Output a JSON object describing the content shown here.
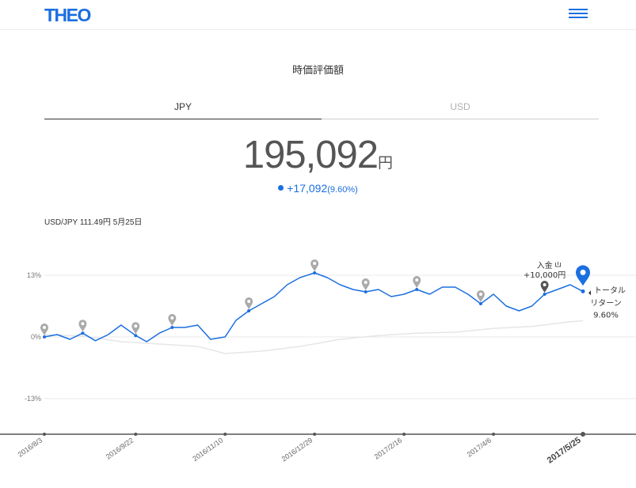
{
  "header": {
    "logo": "THEO",
    "menu_icon": "hamburger-icon"
  },
  "title": "時価評価額",
  "tabs": [
    {
      "label": "JPY",
      "active": true
    },
    {
      "label": "USD",
      "active": false
    }
  ],
  "valuation": {
    "amount": "195,092",
    "unit": "円",
    "gain": "+17,092",
    "gain_pct": "(9.60%)"
  },
  "fx_rate": "USD/JPY 111.49円 5月25日",
  "colors": {
    "accent": "#1b6fe0",
    "benchmark": "#e6e6e6",
    "marker": "#aaaaaa"
  },
  "chart_data": {
    "type": "line",
    "y_ticks": [
      "13%",
      "0%",
      "-13%"
    ],
    "x_ticks": [
      "2016/8/3",
      "2016/9/22",
      "2016/11/10",
      "2016/12/29",
      "2017/2/16",
      "2017/4/6",
      "2017/5/25"
    ],
    "x_ticks_emphasized": "2017/5/25",
    "xlim": [
      "2016/8/3",
      "2017/5/25"
    ],
    "ylim": [
      -0.2,
      0.18
    ],
    "series": [
      {
        "role": "portfolio",
        "x": [
          "2016/8/3",
          "2016/8/10",
          "2016/8/17",
          "2016/8/24",
          "2016/8/31",
          "2016/9/7",
          "2016/9/14",
          "2016/9/22",
          "2016/9/28",
          "2016/10/5",
          "2016/10/12",
          "2016/10/19",
          "2016/10/26",
          "2016/11/2",
          "2016/11/10",
          "2016/11/16",
          "2016/11/23",
          "2016/11/30",
          "2016/12/7",
          "2016/12/14",
          "2016/12/21",
          "2016/12/29",
          "2017/1/5",
          "2017/1/12",
          "2017/1/19",
          "2017/1/26",
          "2017/2/2",
          "2017/2/9",
          "2017/2/16",
          "2017/2/23",
          "2017/3/2",
          "2017/3/9",
          "2017/3/16",
          "2017/3/23",
          "2017/3/30",
          "2017/4/6",
          "2017/4/13",
          "2017/4/20",
          "2017/4/27",
          "2017/5/4",
          "2017/5/11",
          "2017/5/18",
          "2017/5/25"
        ],
        "values": [
          0,
          0.5,
          -0.5,
          0.8,
          -0.8,
          0.5,
          2.5,
          0.3,
          -1.0,
          0.8,
          2.0,
          2.0,
          2.5,
          -0.5,
          0,
          3.5,
          5.5,
          7.0,
          8.5,
          11.0,
          12.5,
          13.5,
          12.5,
          11.0,
          10.0,
          9.5,
          10.0,
          8.5,
          9.0,
          10.0,
          9.0,
          10.5,
          10.5,
          9.0,
          7.0,
          9.0,
          6.5,
          5.5,
          6.5,
          9.0,
          10.0,
          11.0,
          9.6
        ]
      },
      {
        "role": "benchmark",
        "x": [
          "2016/8/3",
          "2016/8/24",
          "2016/9/14",
          "2016/10/5",
          "2016/10/26",
          "2016/11/10",
          "2016/11/30",
          "2016/12/21",
          "2017/1/12",
          "2017/2/2",
          "2017/2/23",
          "2017/3/16",
          "2017/4/6",
          "2017/4/27",
          "2017/5/18",
          "2017/5/25"
        ],
        "values": [
          0.5,
          0.2,
          -1.0,
          -1.5,
          -2.0,
          -3.5,
          -3.0,
          -2.0,
          -0.5,
          0.3,
          0.8,
          1.0,
          1.8,
          2.2,
          3.2,
          3.4
        ]
      }
    ],
    "events": [
      {
        "date": "2016/8/3",
        "kind": "rebalance"
      },
      {
        "date": "2016/8/24",
        "kind": "rebalance"
      },
      {
        "date": "2016/9/22",
        "kind": "rebalance"
      },
      {
        "date": "2016/10/12",
        "kind": "rebalance"
      },
      {
        "date": "2016/11/23",
        "kind": "rebalance"
      },
      {
        "date": "2016/12/29",
        "kind": "rebalance"
      },
      {
        "date": "2017/1/26",
        "kind": "rebalance"
      },
      {
        "date": "2017/2/23",
        "kind": "rebalance"
      },
      {
        "date": "2017/3/30",
        "kind": "rebalance"
      },
      {
        "date": "2017/5/4",
        "kind": "deposit",
        "label": "入金",
        "amount": "+10,000円"
      }
    ],
    "current": {
      "date": "2017/5/25",
      "value": 9.6,
      "label_1": "トータル",
      "label_2": "リターン",
      "pct": "9.60%"
    }
  }
}
